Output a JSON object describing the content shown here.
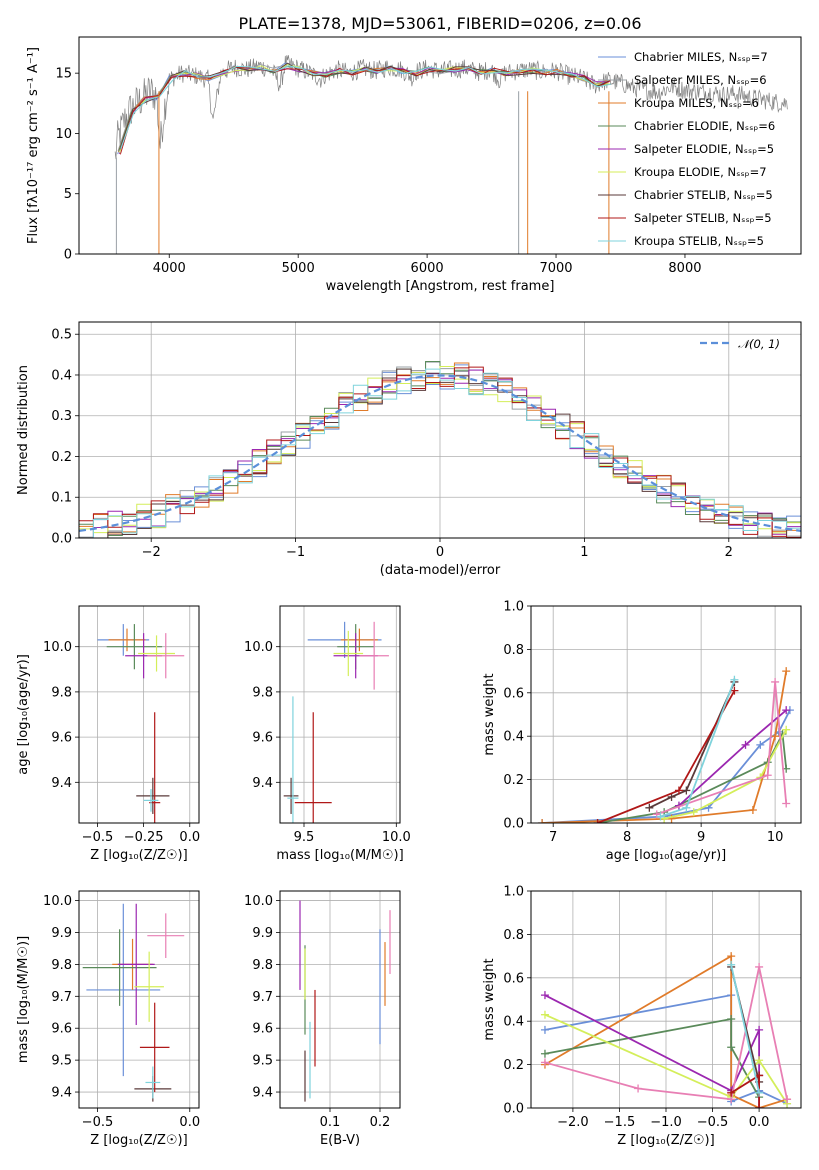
{
  "title": "PLATE=1378, MJD=53061, FIBERID=0206, z=0.06",
  "chart_data": [
    {
      "id": "spectrum",
      "type": "line",
      "xlabel": "wavelength [Angstrom, rest frame]",
      "ylabel": "Flux [fλ10⁻¹⁷ erg cm⁻² s⁻¹ A⁻¹]",
      "xlim": [
        3300,
        8900
      ],
      "ylim": [
        0,
        18
      ],
      "xticks": [
        4000,
        5000,
        6000,
        7000,
        8000
      ],
      "yticks": [
        0,
        5,
        10,
        15
      ],
      "grid": false,
      "legend_position": "top-right",
      "data_trace": {
        "color": "#808080",
        "x": [
          3580,
          3600,
          3650,
          3700,
          3750,
          3800,
          3850,
          3900,
          3930,
          3960,
          4000,
          4100,
          4200,
          4300,
          4340,
          4400,
          4500,
          4600,
          4700,
          4800,
          4861,
          4900,
          5000,
          5100,
          5175,
          5200,
          5300,
          5400,
          5500,
          5600,
          5700,
          5800,
          5893,
          5900,
          6000,
          6100,
          6200,
          6300,
          6400,
          6500,
          6563,
          6600,
          6700,
          6800,
          6900,
          7000,
          7100,
          7200,
          7300,
          7400,
          7500,
          7600,
          7700,
          7800,
          7900,
          8000,
          8100,
          8200,
          8300,
          8400,
          8500,
          8600,
          8700,
          8800
        ],
        "y": [
          8,
          9.5,
          11,
          12,
          12.5,
          13,
          13.5,
          13.2,
          9,
          12,
          14.5,
          15,
          14.8,
          14.5,
          11,
          15,
          15.5,
          15.3,
          15.6,
          15.2,
          14,
          15.8,
          15.4,
          15,
          14.5,
          14.8,
          15.3,
          15,
          15.4,
          15.2,
          15.5,
          15.3,
          14.6,
          15.1,
          15.4,
          15.2,
          15.3,
          15.4,
          15.1,
          15.3,
          14.4,
          15,
          15.2,
          15.3,
          15.1,
          15.2,
          14.8,
          14.6,
          14,
          14.4,
          14.2,
          13.8,
          13.6,
          13.4,
          13.9,
          13.6,
          13.5,
          13.4,
          13.2,
          13.3,
          13,
          12.8,
          12.6,
          12.5
        ]
      },
      "series": [
        {
          "name": "Chabrier MILES, N_SSP=7",
          "color": "#6a8fd8"
        },
        {
          "name": "Salpeter MILES, N_SSP=6",
          "color": "#9aa0a6"
        },
        {
          "name": "Kroupa MILES, N_SSP=6",
          "color": "#e07b2a"
        },
        {
          "name": "Chabrier ELODIE, N_SSP=6",
          "color": "#5a8a5a"
        },
        {
          "name": "Salpeter ELODIE, N_SSP=5",
          "color": "#9b27b0"
        },
        {
          "name": "Kroupa ELODIE, N_SSP=7",
          "color": "#d4ee5a"
        },
        {
          "name": "Chabrier STELIB, N_SSP=5",
          "color": "#5a3a3a"
        },
        {
          "name": "Salpeter STELIB, N_SSP=5",
          "color": "#b01818"
        },
        {
          "name": "Kroupa STELIB, N_SSP=5",
          "color": "#7fd3dc"
        }
      ],
      "model_trace": {
        "x": [
          3600,
          3700,
          3800,
          3900,
          4000,
          4100,
          4200,
          4300,
          4400,
          4500,
          4600,
          4700,
          4800,
          4900,
          5000,
          5100,
          5200,
          5300,
          5400,
          5500,
          5600,
          5700,
          5800,
          5900,
          6000,
          6100,
          6200,
          6300,
          6400,
          6500,
          6600,
          6700,
          6800,
          6900,
          7000,
          7100,
          7200,
          7300,
          7400
        ],
        "y": [
          8.5,
          11.8,
          12.8,
          13.0,
          14.6,
          15.0,
          14.8,
          14.6,
          15.0,
          15.4,
          15.3,
          15.5,
          15.2,
          15.6,
          15.3,
          15.0,
          14.8,
          15.2,
          15.0,
          15.3,
          15.2,
          15.4,
          15.2,
          15.0,
          15.3,
          15.2,
          15.3,
          15.3,
          15.1,
          15.2,
          15.0,
          15.1,
          15.2,
          15.1,
          15.1,
          14.8,
          14.6,
          14.1,
          14.3
        ]
      }
    },
    {
      "id": "residuals",
      "type": "histogram",
      "xlabel": "(data-model)/error",
      "ylabel": "Normed distribution",
      "xlim": [
        -2.5,
        2.5
      ],
      "ylim": [
        0,
        0.53
      ],
      "xticks": [
        -2,
        -1,
        0,
        1,
        2
      ],
      "yticks": [
        0.0,
        0.1,
        0.2,
        0.3,
        0.4,
        0.5
      ],
      "grid": true,
      "legend_position": "top-right",
      "reference": {
        "name": "𝒩(0, 1)",
        "color": "#5b8fd9",
        "style": "dashed"
      },
      "bin_width": 0.1
    },
    {
      "id": "age-vs-Z",
      "type": "errorbar",
      "xlabel": "Z [log₁₀(Z/Z☉)]",
      "ylabel": "age  [log₁₀(age/yr)]",
      "xlim": [
        -0.6,
        0.05
      ],
      "ylim": [
        9.22,
        10.18
      ],
      "xticks": [
        -0.5,
        -0.25,
        0.0
      ],
      "xticklabels": [
        "−0.5",
        "−0.25",
        "0.0"
      ],
      "yticks": [
        9.4,
        9.6,
        9.8,
        10.0
      ],
      "grid": true,
      "points": [
        {
          "x": -0.36,
          "y": 10.03,
          "xerr": 0.14,
          "yerr": 0.07,
          "color": "#6a8fd8"
        },
        {
          "x": -0.34,
          "y": 10.03,
          "xerr": 0.1,
          "yerr": 0.05,
          "color": "#e07b2a"
        },
        {
          "x": -0.3,
          "y": 10.0,
          "xerr": 0.15,
          "yerr": 0.1,
          "color": "#5a8a5a"
        },
        {
          "x": -0.25,
          "y": 9.96,
          "xerr": 0.1,
          "yerr": 0.1,
          "color": "#9b27b0"
        },
        {
          "x": -0.18,
          "y": 9.97,
          "xerr": 0.1,
          "yerr": 0.08,
          "color": "#d4ee5a"
        },
        {
          "x": -0.13,
          "y": 9.96,
          "xerr": 0.1,
          "yerr": 0.1,
          "color": "#e87fb4"
        },
        {
          "x": -0.2,
          "y": 9.34,
          "xerr": 0.09,
          "yerr": 0.08,
          "color": "#5a3a3a"
        },
        {
          "x": -0.19,
          "y": 9.31,
          "xerr": 0.03,
          "yerr": 0.4,
          "color": "#b01818"
        },
        {
          "x": -0.21,
          "y": 9.32,
          "xerr": 0.04,
          "yerr": 0.05,
          "color": "#7fd3dc"
        }
      ]
    },
    {
      "id": "age-vs-mass",
      "type": "errorbar",
      "xlabel": "mass [log₁₀(M/M☉)]",
      "ylabel": "",
      "xlim": [
        9.37,
        10.02
      ],
      "ylim": [
        9.22,
        10.18
      ],
      "xticks": [
        9.5,
        10.0
      ],
      "yticks": [
        9.4,
        9.6,
        9.8,
        10.0
      ],
      "grid": true,
      "points": [
        {
          "x": 9.72,
          "y": 10.03,
          "xerr": 0.2,
          "yerr": 0.08,
          "color": "#6a8fd8"
        },
        {
          "x": 9.8,
          "y": 10.03,
          "xerr": 0.1,
          "yerr": 0.05,
          "color": "#e07b2a"
        },
        {
          "x": 9.78,
          "y": 10.0,
          "xerr": 0.1,
          "yerr": 0.1,
          "color": "#5a8a5a"
        },
        {
          "x": 9.78,
          "y": 9.96,
          "xerr": 0.12,
          "yerr": 0.1,
          "color": "#9b27b0"
        },
        {
          "x": 9.74,
          "y": 9.97,
          "xerr": 0.08,
          "yerr": 0.1,
          "color": "#d4ee5a"
        },
        {
          "x": 9.88,
          "y": 9.96,
          "xerr": 0.08,
          "yerr": 0.15,
          "color": "#e87fb4"
        },
        {
          "x": 9.43,
          "y": 9.34,
          "xerr": 0.04,
          "yerr": 0.08,
          "color": "#5a3a3a"
        },
        {
          "x": 9.55,
          "y": 9.31,
          "xerr": 0.1,
          "yerr": 0.4,
          "color": "#b01818"
        },
        {
          "x": 9.44,
          "y": 9.33,
          "xerr": 0.03,
          "yerr": 0.45,
          "color": "#7fd3dc"
        }
      ]
    },
    {
      "id": "mass-weight-vs-age",
      "type": "line",
      "xlabel": "age  [log₁₀(age/yr)]",
      "ylabel": "mass weight",
      "xlim": [
        6.7,
        10.35
      ],
      "ylim": [
        0,
        1.0
      ],
      "xticks": [
        7,
        8,
        9,
        10
      ],
      "yticks": [
        0.0,
        0.2,
        0.4,
        0.6,
        0.8,
        1.0
      ],
      "grid": true,
      "series": [
        {
          "color": "#6a8fd8",
          "x": [
            6.85,
            8.5,
            9.1,
            9.8,
            10.05,
            10.2
          ],
          "y": [
            0.0,
            0.03,
            0.07,
            0.36,
            0.42,
            0.52
          ]
        },
        {
          "color": "#e07b2a",
          "x": [
            6.85,
            8.6,
            9.7,
            10.0,
            10.15
          ],
          "y": [
            0.0,
            0.02,
            0.06,
            0.4,
            0.7
          ]
        },
        {
          "color": "#5a8a5a",
          "x": [
            7.6,
            8.5,
            9.9,
            10.1,
            10.15
          ],
          "y": [
            0.0,
            0.05,
            0.28,
            0.41,
            0.25
          ]
        },
        {
          "color": "#9b27b0",
          "x": [
            8.7,
            9.6,
            10.15
          ],
          "y": [
            0.08,
            0.36,
            0.52
          ]
        },
        {
          "color": "#d4ee5a",
          "x": [
            8.5,
            8.9,
            9.8,
            10.15
          ],
          "y": [
            0.02,
            0.05,
            0.21,
            0.43
          ]
        },
        {
          "color": "#e87fb4",
          "x": [
            8.4,
            9.9,
            10.0,
            10.15
          ],
          "y": [
            0.04,
            0.22,
            0.65,
            0.09
          ]
        },
        {
          "color": "#5a3a3a",
          "x": [
            8.3,
            8.6,
            8.8,
            9.45
          ],
          "y": [
            0.07,
            0.12,
            0.15,
            0.65
          ]
        },
        {
          "color": "#b01818",
          "x": [
            7.6,
            8.7,
            9.45
          ],
          "y": [
            0.0,
            0.15,
            0.61
          ]
        },
        {
          "color": "#7fd3dc",
          "x": [
            8.45,
            8.8,
            9.45
          ],
          "y": [
            0.03,
            0.07,
            0.66
          ]
        }
      ]
    },
    {
      "id": "mass-vs-Z",
      "type": "errorbar",
      "xlabel": "Z [log₁₀(Z/Z☉)]",
      "ylabel": "mass [log₁₀(M/M☉)]",
      "xlim": [
        -0.6,
        0.05
      ],
      "ylim": [
        9.35,
        10.03
      ],
      "xticks": [
        -0.5,
        0.0
      ],
      "yticks": [
        9.4,
        9.5,
        9.6,
        9.7,
        9.8,
        9.9,
        10.0
      ],
      "grid": true,
      "points": [
        {
          "x": -0.36,
          "y": 9.72,
          "xerr": 0.2,
          "yerr": 0.27,
          "color": "#6a8fd8"
        },
        {
          "x": -0.31,
          "y": 9.8,
          "xerr": 0.11,
          "yerr": 0.08,
          "color": "#e07b2a"
        },
        {
          "x": -0.38,
          "y": 9.79,
          "xerr": 0.2,
          "yerr": 0.12,
          "color": "#5a8a5a"
        },
        {
          "x": -0.29,
          "y": 9.8,
          "xerr": 0.1,
          "yerr": 0.19,
          "color": "#9b27b0"
        },
        {
          "x": -0.22,
          "y": 9.73,
          "xerr": 0.08,
          "yerr": 0.11,
          "color": "#d4ee5a"
        },
        {
          "x": -0.13,
          "y": 9.89,
          "xerr": 0.1,
          "yerr": 0.07,
          "color": "#e87fb4"
        },
        {
          "x": -0.2,
          "y": 9.41,
          "xerr": 0.1,
          "yerr": 0.04,
          "color": "#5a3a3a"
        },
        {
          "x": -0.19,
          "y": 9.54,
          "xerr": 0.08,
          "yerr": 0.14,
          "color": "#b01818"
        },
        {
          "x": -0.2,
          "y": 9.43,
          "xerr": 0.04,
          "yerr": 0.05,
          "color": "#7fd3dc"
        }
      ]
    },
    {
      "id": "mass-vs-ebv",
      "type": "errorbar",
      "xlabel": "E(B-V)",
      "ylabel": "",
      "xlim": [
        0.0,
        0.24
      ],
      "ylim": [
        9.35,
        10.03
      ],
      "xticks": [
        0.1,
        0.2
      ],
      "yticks": [
        9.4,
        9.5,
        9.6,
        9.7,
        9.8,
        9.9,
        10.0
      ],
      "grid": true,
      "points": [
        {
          "x": 0.2,
          "y": 9.73,
          "xerr": 0.0,
          "yerr": 0.18,
          "color": "#6a8fd8"
        },
        {
          "x": 0.21,
          "y": 9.77,
          "xerr": 0.0,
          "yerr": 0.1,
          "color": "#e07b2a"
        },
        {
          "x": 0.05,
          "y": 9.72,
          "xerr": 0.0,
          "yerr": 0.14,
          "color": "#5a8a5a"
        },
        {
          "x": 0.04,
          "y": 9.86,
          "xerr": 0.0,
          "yerr": 0.14,
          "color": "#9b27b0"
        },
        {
          "x": 0.05,
          "y": 9.77,
          "xerr": 0.0,
          "yerr": 0.08,
          "color": "#d4ee5a"
        },
        {
          "x": 0.22,
          "y": 9.87,
          "xerr": 0.0,
          "yerr": 0.1,
          "color": "#e87fb4"
        },
        {
          "x": 0.05,
          "y": 9.45,
          "xerr": 0.0,
          "yerr": 0.08,
          "color": "#5a3a3a"
        },
        {
          "x": 0.07,
          "y": 9.6,
          "xerr": 0.0,
          "yerr": 0.12,
          "color": "#b01818"
        },
        {
          "x": 0.06,
          "y": 9.5,
          "xerr": 0.0,
          "yerr": 0.12,
          "color": "#7fd3dc"
        }
      ]
    },
    {
      "id": "mass-weight-vs-Z",
      "type": "line",
      "xlabel": "Z [log₁₀(Z/Z☉)]",
      "ylabel": "mass weight",
      "xlim": [
        -2.45,
        0.45
      ],
      "ylim": [
        0,
        1.0
      ],
      "xticks": [
        -2.0,
        -1.5,
        -1.0,
        -0.5,
        0.0
      ],
      "xticklabels": [
        "−2.0",
        "−1.5",
        "−1.0",
        "−0.5",
        "0.0"
      ],
      "yticks": [
        0.0,
        0.2,
        0.4,
        0.6,
        0.8,
        1.0
      ],
      "grid": true,
      "series": [
        {
          "color": "#6a8fd8",
          "x": [
            -2.3,
            -0.3,
            -0.3,
            0.0,
            0.3
          ],
          "y": [
            0.36,
            0.52,
            0.03,
            0.08,
            0.02
          ]
        },
        {
          "color": "#e07b2a",
          "x": [
            -2.3,
            -0.3,
            -0.3,
            0.0,
            0.3
          ],
          "y": [
            0.2,
            0.7,
            0.06,
            0.0,
            0.04
          ]
        },
        {
          "color": "#5a8a5a",
          "x": [
            -2.3,
            -0.3,
            -0.3,
            0.0
          ],
          "y": [
            0.25,
            0.41,
            0.28,
            0.05
          ]
        },
        {
          "color": "#9b27b0",
          "x": [
            -2.3,
            -0.3,
            0.0,
            0.0
          ],
          "y": [
            0.52,
            0.08,
            0.36,
            0.0
          ]
        },
        {
          "color": "#d4ee5a",
          "x": [
            -2.3,
            -0.3,
            0.0,
            0.3
          ],
          "y": [
            0.43,
            0.05,
            0.22,
            0.02
          ]
        },
        {
          "color": "#e87fb4",
          "x": [
            -2.3,
            -1.3,
            -0.3,
            0.0,
            0.3
          ],
          "y": [
            0.21,
            0.09,
            0.04,
            0.65,
            0.04
          ]
        },
        {
          "color": "#5a3a3a",
          "x": [
            -0.3,
            0.0,
            0.0
          ],
          "y": [
            0.65,
            0.12,
            0.15
          ]
        },
        {
          "color": "#b01818",
          "x": [
            -0.3,
            0.0,
            0.0
          ],
          "y": [
            0.07,
            0.15,
            0.0
          ]
        },
        {
          "color": "#7fd3dc",
          "x": [
            -0.3,
            0.0
          ],
          "y": [
            0.66,
            0.07
          ]
        }
      ]
    }
  ]
}
